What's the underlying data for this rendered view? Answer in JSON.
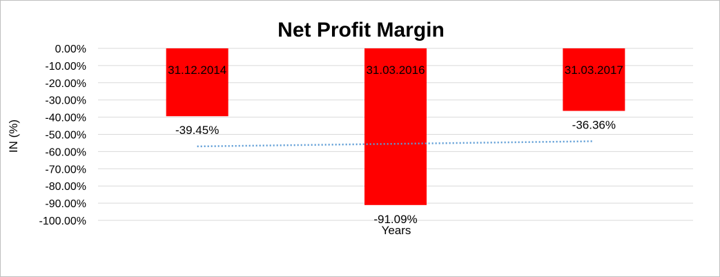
{
  "chart_data": {
    "type": "bar",
    "title": "Net Profit Margin",
    "xlabel": "Years",
    "ylabel": "IN (%)",
    "categories": [
      "31.12.2014",
      "31.03.2016",
      "31.03.2017"
    ],
    "values": [
      -39.45,
      -91.09,
      -36.36
    ],
    "value_labels": [
      "-39.45%",
      "-91.09%",
      "-36.36%"
    ],
    "ylim": [
      -100,
      0
    ],
    "yticks": [
      0,
      -10,
      -20,
      -30,
      -40,
      -50,
      -60,
      -70,
      -80,
      -90,
      -100
    ],
    "ytick_labels": [
      "0.00%",
      "-10.00%",
      "-20.00%",
      "-30.00%",
      "-40.00%",
      "-50.00%",
      "-60.00%",
      "-70.00%",
      "-80.00%",
      "-90.00%",
      "-100.00%"
    ],
    "bar_color": "#ff0000",
    "trendline": {
      "type": "linear",
      "style": "dotted",
      "color": "#5b9bd5",
      "start_value": -57,
      "end_value": -54
    },
    "grid": true,
    "legend": "none"
  }
}
